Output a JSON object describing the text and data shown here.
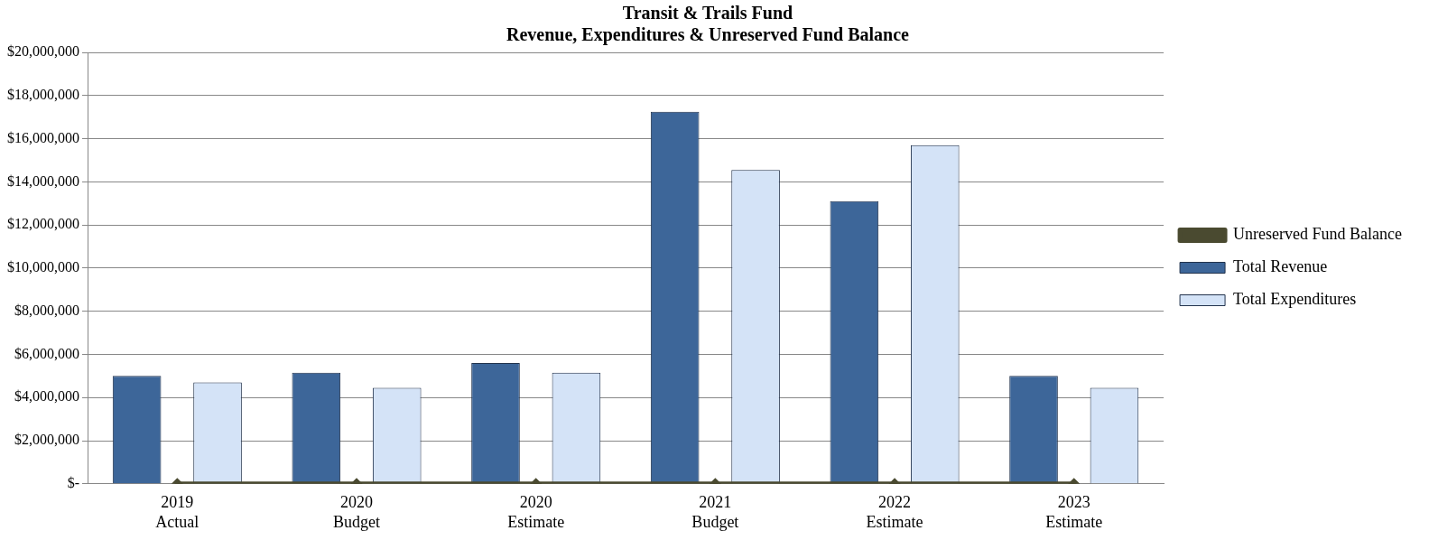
{
  "chart_data": {
    "type": "bar",
    "title": "Transit & Trails Fund",
    "subtitle": "Revenue, Expenditures & Unreserved Fund Balance",
    "categories": [
      "2019\nActual",
      "2020\nBudget",
      "2020\nEstimate",
      "2021\nBudget",
      "2022\nEstimate",
      "2023\nEstimate"
    ],
    "series": [
      {
        "name": "Total Revenue",
        "color": "#3d6699",
        "values": [
          5000000,
          5150000,
          5600000,
          17250000,
          13100000,
          5000000
        ]
      },
      {
        "name": "Total Expenditures",
        "color": "#d4e3f7",
        "values": [
          4700000,
          4450000,
          5150000,
          14550000,
          15700000,
          4450000
        ]
      },
      {
        "name": "Unreserved Fund Balance",
        "type": "line",
        "color": "#4a4a30",
        "marker": "diamond",
        "values": [
          0,
          0,
          0,
          0,
          0,
          0
        ]
      }
    ],
    "ylim": [
      0,
      20000000
    ],
    "yticks": [
      {
        "value": 0,
        "label": "$-"
      },
      {
        "value": 2000000,
        "label": "$2,000,000"
      },
      {
        "value": 4000000,
        "label": "$4,000,000"
      },
      {
        "value": 6000000,
        "label": "$6,000,000"
      },
      {
        "value": 8000000,
        "label": "$8,000,000"
      },
      {
        "value": 10000000,
        "label": "$10,000,000"
      },
      {
        "value": 12000000,
        "label": "$12,000,000"
      },
      {
        "value": 14000000,
        "label": "$14,000,000"
      },
      {
        "value": 16000000,
        "label": "$16,000,000"
      },
      {
        "value": 18000000,
        "label": "$18,000,000"
      },
      {
        "value": 20000000,
        "label": "$20,000,000"
      }
    ],
    "grid": "y",
    "legend": "right"
  }
}
